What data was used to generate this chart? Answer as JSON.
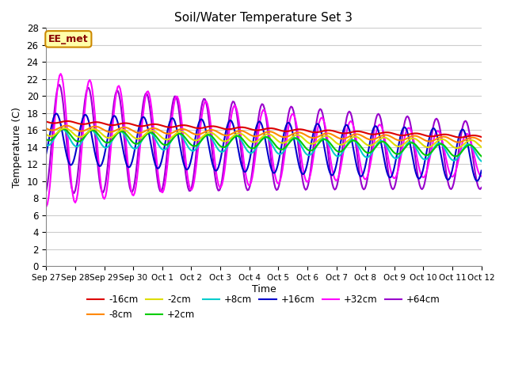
{
  "title": "Soil/Water Temperature Set 3",
  "xlabel": "Time",
  "ylabel": "Temperature (C)",
  "annotation": "EE_met",
  "annotation_color": "#880000",
  "annotation_bg": "#ffffaa",
  "annotation_border": "#cc8800",
  "ylim": [
    0,
    28
  ],
  "yticks": [
    0,
    2,
    4,
    6,
    8,
    10,
    12,
    14,
    16,
    18,
    20,
    22,
    24,
    26,
    28
  ],
  "fig_bg": "#ffffff",
  "plot_bg": "#ffffff",
  "grid_color": "#cccccc",
  "series": {
    "-16cm": {
      "color": "#dd0000",
      "lw": 1.5
    },
    "-8cm": {
      "color": "#ff8800",
      "lw": 1.5
    },
    "-2cm": {
      "color": "#dddd00",
      "lw": 1.5
    },
    "+2cm": {
      "color": "#00cc00",
      "lw": 1.5
    },
    "+8cm": {
      "color": "#00cccc",
      "lw": 1.5
    },
    "+16cm": {
      "color": "#0000cc",
      "lw": 1.5
    },
    "+32cm": {
      "color": "#ff00ff",
      "lw": 1.5
    },
    "+64cm": {
      "color": "#9900cc",
      "lw": 1.5
    }
  },
  "x_tick_labels": [
    "Sep 27",
    "Sep 28",
    "Sep 29",
    "Sep 30",
    "Oct 1",
    "Oct 2",
    "Oct 3",
    "Oct 4",
    "Oct 5",
    "Oct 6",
    "Oct 7",
    "Oct 8",
    "Oct 9",
    "Oct 10",
    "Oct 11",
    "Oct 12"
  ]
}
